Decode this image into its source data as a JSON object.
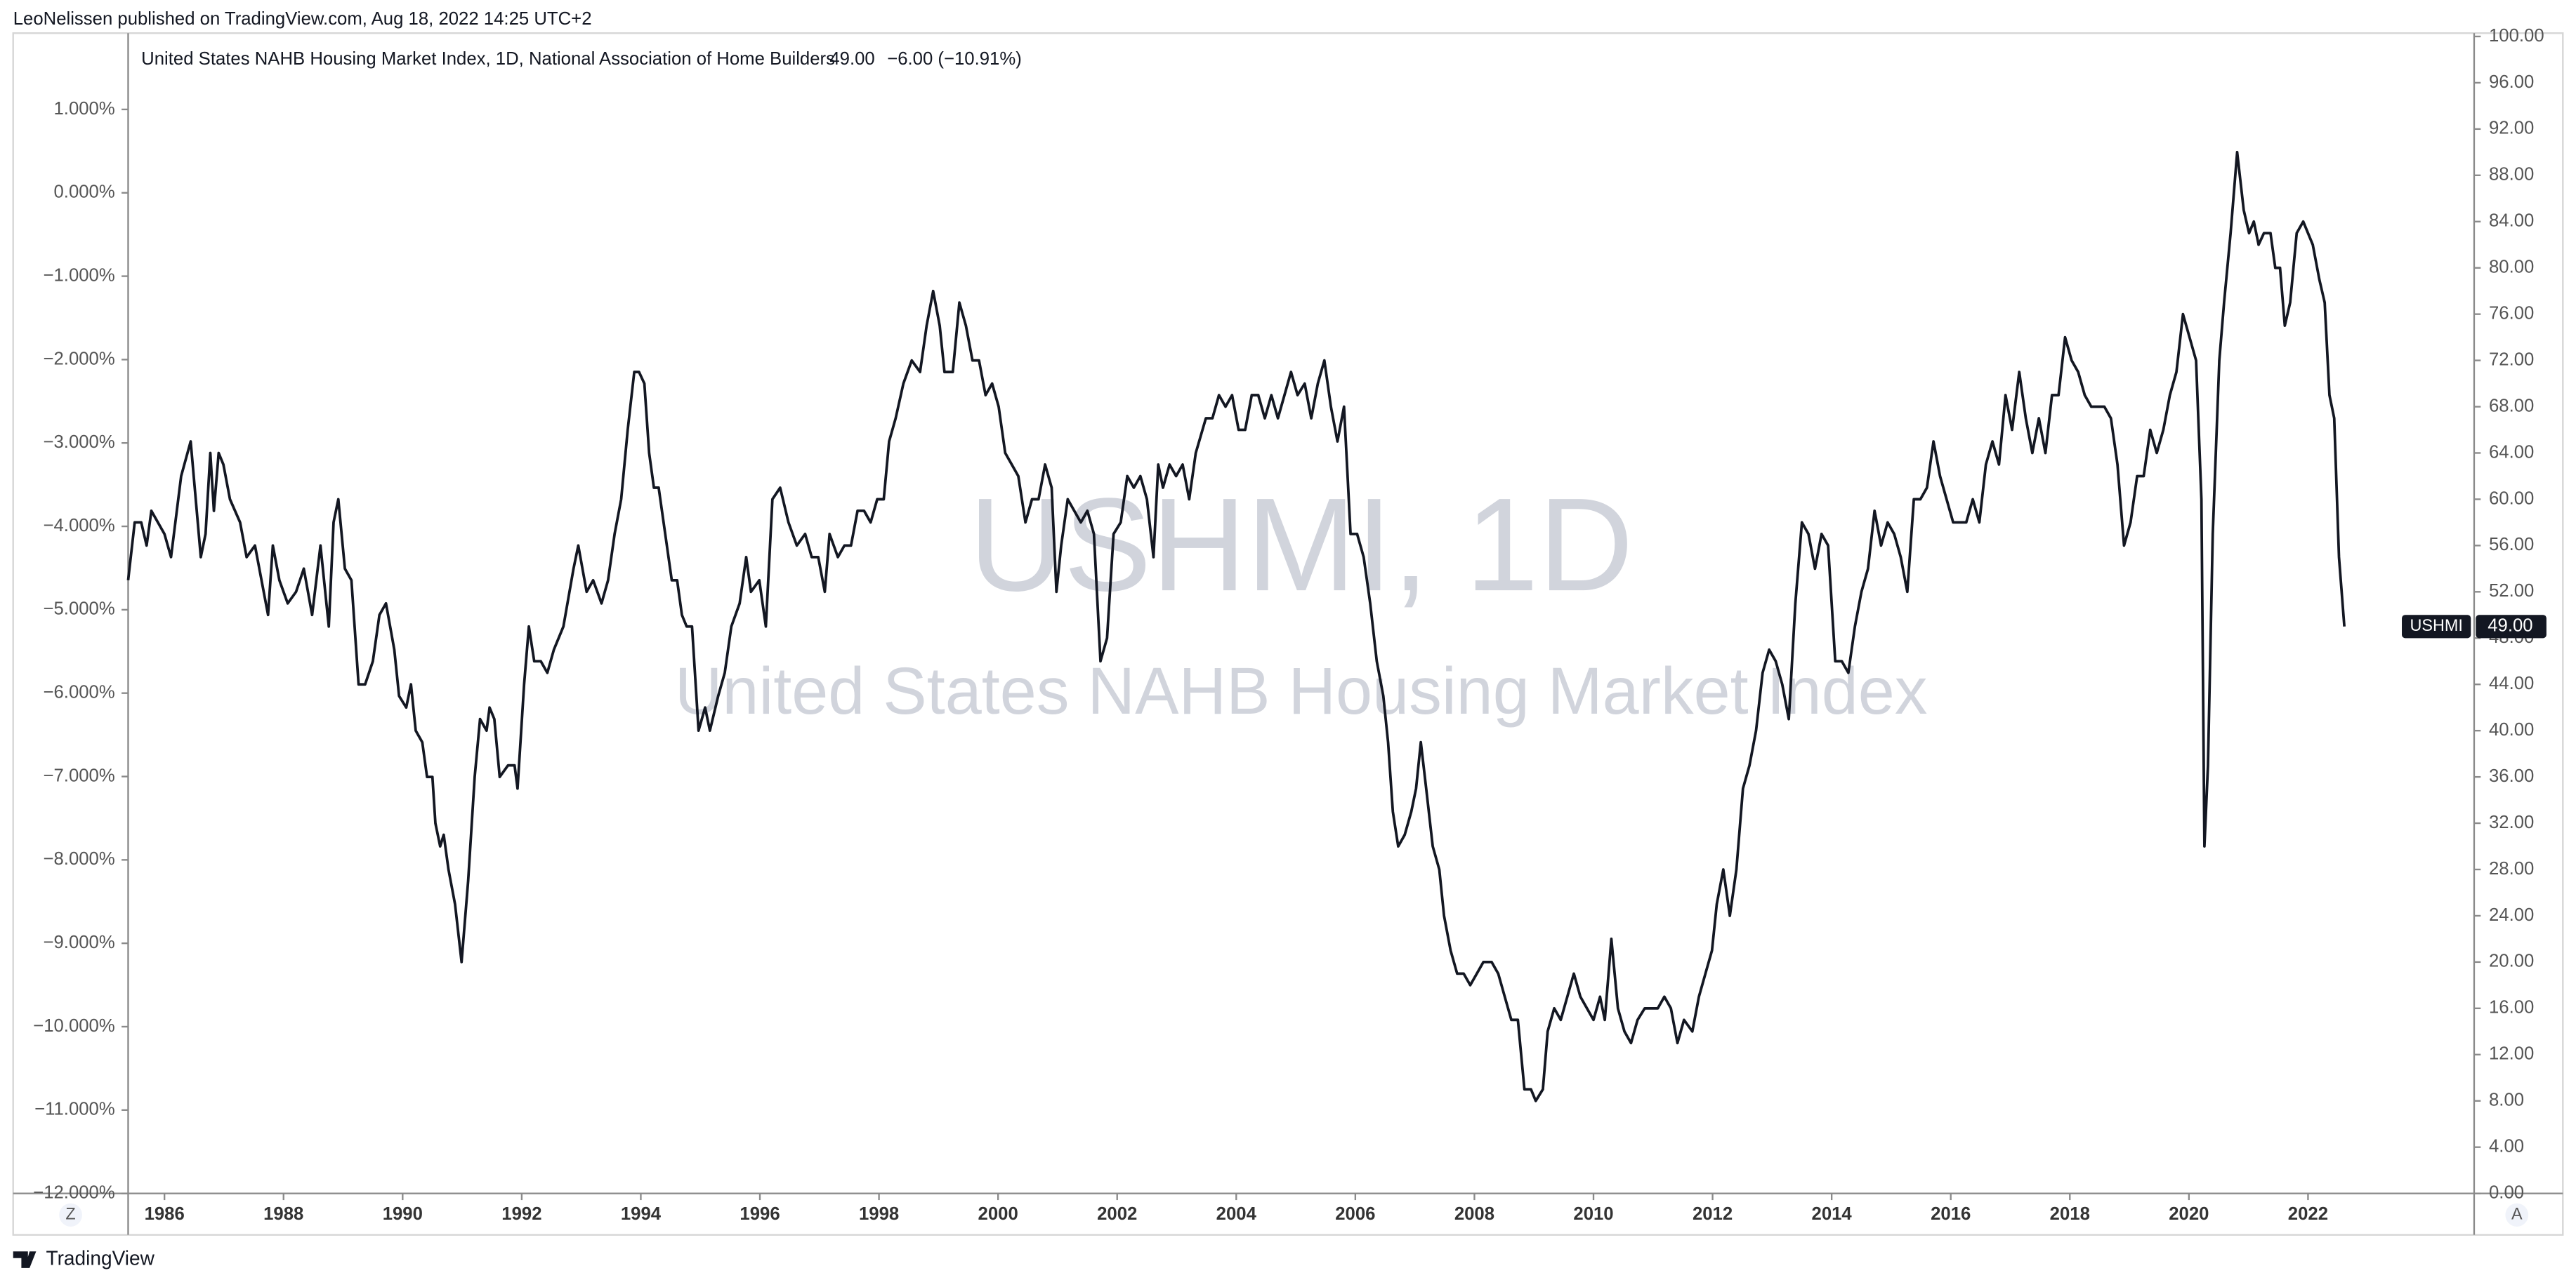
{
  "header": {
    "publisher": "LeoNelissen published on TradingView.com, Aug 18, 2022 14:25 UTC+2"
  },
  "chart_data": {
    "type": "line",
    "legend": {
      "title": "United States NAHB Housing Market Index, 1D, National Association of Home Builders",
      "value": "49.00",
      "change": "−6.00 (−10.91%)"
    },
    "watermark": {
      "symbol": "USHMI, 1D",
      "description": "United States NAHB Housing Market Index"
    },
    "price_tag": {
      "value": "49.00"
    },
    "x": [
      1985.39,
      1985.5,
      1985.61,
      1985.7,
      1985.78,
      1986,
      1986.11,
      1986.28,
      1986.44,
      1986.61,
      1986.69,
      1986.77,
      1986.83,
      1986.91,
      1986.99,
      1987.1,
      1987.27,
      1987.38,
      1987.52,
      1987.74,
      1987.82,
      1987.93,
      1988.07,
      1988.21,
      1988.34,
      1988.48,
      1988.62,
      1988.76,
      1988.84,
      1988.92,
      1989.03,
      1989.14,
      1989.26,
      1989.37,
      1989.5,
      1989.61,
      1989.72,
      1989.86,
      1989.94,
      1990.06,
      1990.14,
      1990.22,
      1990.33,
      1990.41,
      1990.5,
      1990.55,
      1990.63,
      1990.69,
      1990.77,
      1990.88,
      1990.99,
      1991.1,
      1991.21,
      1991.3,
      1991.41,
      1991.46,
      1991.54,
      1991.63,
      1991.77,
      1991.88,
      1991.93,
      1992.04,
      1992.12,
      1992.21,
      1992.32,
      1992.43,
      1992.54,
      1992.7,
      1992.87,
      1992.95,
      1993.09,
      1993.2,
      1993.34,
      1993.45,
      1993.56,
      1993.67,
      1993.78,
      1993.89,
      1993.97,
      1994.06,
      1994.14,
      1994.22,
      1994.3,
      1994.41,
      1994.52,
      1994.61,
      1994.69,
      1994.77,
      1994.86,
      1994.97,
      1995.08,
      1995.16,
      1995.3,
      1995.41,
      1995.52,
      1995.66,
      1995.77,
      1995.85,
      1995.99,
      1996.1,
      1996.21,
      1996.34,
      1996.48,
      1996.62,
      1996.76,
      1996.87,
      1996.98,
      1997.09,
      1997.17,
      1997.31,
      1997.42,
      1997.53,
      1997.64,
      1997.75,
      1997.86,
      1997.97,
      1998.08,
      1998.17,
      1998.28,
      1998.41,
      1998.55,
      1998.69,
      1998.8,
      1998.91,
      1999.02,
      1999.1,
      1999.24,
      1999.35,
      1999.46,
      1999.57,
      1999.68,
      1999.79,
      1999.9,
      2000.01,
      2000.12,
      2000.23,
      2000.34,
      2000.46,
      2000.57,
      2000.68,
      2000.79,
      2000.9,
      2000.98,
      2001.06,
      2001.17,
      2001.28,
      2001.39,
      2001.5,
      2001.61,
      2001.72,
      2001.83,
      2001.94,
      2002.06,
      2002.17,
      2002.28,
      2002.39,
      2002.5,
      2002.61,
      2002.69,
      2002.77,
      2002.88,
      2002.99,
      2003.1,
      2003.21,
      2003.32,
      2003.49,
      2003.6,
      2003.71,
      2003.82,
      2003.93,
      2004.04,
      2004.15,
      2004.26,
      2004.37,
      2004.48,
      2004.59,
      2004.7,
      2004.81,
      2004.92,
      2005.03,
      2005.15,
      2005.26,
      2005.37,
      2005.48,
      2005.59,
      2005.7,
      2005.81,
      2005.92,
      2006.03,
      2006.14,
      2006.25,
      2006.36,
      2006.47,
      2006.55,
      2006.63,
      2006.72,
      2006.83,
      2006.94,
      2007.02,
      2007.1,
      2007.19,
      2007.3,
      2007.41,
      2007.49,
      2007.6,
      2007.71,
      2007.82,
      2007.93,
      2008.04,
      2008.15,
      2008.29,
      2008.4,
      2008.51,
      2008.62,
      2008.73,
      2008.84,
      2008.95,
      2009.03,
      2009.15,
      2009.23,
      2009.34,
      2009.45,
      2009.56,
      2009.67,
      2009.78,
      2009.89,
      2010,
      2010.11,
      2010.19,
      2010.3,
      2010.41,
      2010.52,
      2010.63,
      2010.74,
      2010.86,
      2010.97,
      2011.08,
      2011.19,
      2011.3,
      2011.41,
      2011.52,
      2011.66,
      2011.77,
      2011.88,
      2011.99,
      2012.07,
      2012.18,
      2012.29,
      2012.4,
      2012.51,
      2012.62,
      2012.73,
      2012.84,
      2012.95,
      2013.06,
      2013.17,
      2013.28,
      2013.39,
      2013.5,
      2013.61,
      2013.72,
      2013.83,
      2013.94,
      2014.06,
      2014.17,
      2014.28,
      2014.39,
      2014.5,
      2014.61,
      2014.72,
      2014.83,
      2014.94,
      2015.05,
      2015.16,
      2015.27,
      2015.38,
      2015.49,
      2015.6,
      2015.71,
      2015.82,
      2015.93,
      2016.04,
      2016.15,
      2016.26,
      2016.37,
      2016.48,
      2016.59,
      2016.7,
      2016.81,
      2016.92,
      2017.03,
      2017.15,
      2017.26,
      2017.37,
      2017.48,
      2017.59,
      2017.7,
      2017.81,
      2017.92,
      2018.03,
      2018.14,
      2018.25,
      2018.36,
      2018.47,
      2018.58,
      2018.69,
      2018.8,
      2018.91,
      2019.02,
      2019.13,
      2019.24,
      2019.35,
      2019.46,
      2019.57,
      2019.68,
      2019.79,
      2019.9,
      2020.01,
      2020.12,
      2020.21,
      2020.26,
      2020.32,
      2020.4,
      2020.51,
      2020.59,
      2020.7,
      2020.81,
      2020.92,
      2021.01,
      2021.09,
      2021.17,
      2021.26,
      2021.37,
      2021.45,
      2021.53,
      2021.61,
      2021.7,
      2021.81,
      2021.92,
      2022,
      2022.08,
      2022.19,
      2022.28,
      2022.36,
      2022.44,
      2022.52,
      2022.61
    ],
    "xlim": [
      1985.39,
      2024.79
    ],
    "xticks": [
      1986,
      1988,
      1990,
      1992,
      1994,
      1996,
      1998,
      2000,
      2002,
      2004,
      2006,
      2008,
      2010,
      2012,
      2014,
      2016,
      2018,
      2020,
      2022
    ],
    "series": [
      {
        "name": "USHMI",
        "color": "#131722",
        "values": [
          53,
          58,
          58,
          56,
          59,
          57,
          55,
          62,
          65,
          55,
          57,
          64,
          59,
          64,
          63,
          60,
          58,
          55,
          56,
          50,
          56,
          53,
          51,
          52,
          54,
          50,
          56,
          49,
          58,
          60,
          54,
          53,
          44,
          44,
          46,
          50,
          51,
          47,
          43,
          42,
          44,
          40,
          39,
          36,
          36,
          32,
          30,
          31,
          28,
          25,
          20,
          27,
          36,
          41,
          40,
          42,
          41,
          36,
          37,
          37,
          35,
          44,
          49,
          46,
          46,
          45,
          47,
          49,
          54,
          56,
          52,
          53,
          51,
          53,
          57,
          60,
          66,
          71,
          71,
          70,
          64,
          61,
          61,
          57,
          53,
          53,
          50,
          49,
          49,
          40,
          42,
          40,
          43,
          45,
          49,
          51,
          55,
          52,
          53,
          49,
          60,
          61,
          58,
          56,
          57,
          55,
          55,
          52,
          57,
          55,
          56,
          56,
          59,
          59,
          58,
          60,
          60,
          65,
          67,
          70,
          72,
          71,
          75,
          78,
          75,
          71,
          71,
          77,
          75,
          72,
          72,
          69,
          70,
          68,
          64,
          63,
          62,
          58,
          60,
          60,
          63,
          61,
          52,
          56,
          60,
          59,
          58,
          59,
          57,
          46,
          48,
          57,
          58,
          62,
          61,
          62,
          60,
          55,
          63,
          61,
          63,
          62,
          63,
          60,
          64,
          67,
          67,
          69,
          68,
          69,
          66,
          66,
          69,
          69,
          67,
          69,
          67,
          69,
          71,
          69,
          70,
          67,
          70,
          72,
          68,
          65,
          68,
          57,
          57,
          55,
          51,
          46,
          43,
          39,
          33,
          30,
          31,
          33,
          35,
          39,
          35,
          30,
          28,
          24,
          21,
          19,
          19,
          18,
          19,
          20,
          20,
          19,
          17,
          15,
          15,
          9,
          9,
          8,
          9,
          14,
          16,
          15,
          17,
          19,
          17,
          16,
          15,
          17,
          15,
          22,
          16,
          14,
          13,
          15,
          16,
          16,
          16,
          17,
          16,
          13,
          15,
          14,
          17,
          19,
          21,
          25,
          28,
          24,
          28,
          35,
          37,
          40,
          45,
          47,
          46,
          44,
          41,
          51,
          58,
          57,
          54,
          57,
          56,
          46,
          46,
          45,
          49,
          52,
          54,
          59,
          56,
          58,
          57,
          55,
          52,
          60,
          60,
          61,
          65,
          62,
          60,
          58,
          58,
          58,
          60,
          58,
          63,
          65,
          63,
          69,
          66,
          71,
          67,
          64,
          67,
          64,
          69,
          69,
          74,
          72,
          71,
          69,
          68,
          68,
          68,
          67,
          63,
          56,
          58,
          62,
          62,
          66,
          64,
          66,
          69,
          71,
          76,
          74,
          72,
          60,
          30,
          37,
          57,
          72,
          77,
          83,
          90,
          85,
          83,
          84,
          82,
          83,
          83,
          80,
          80,
          75,
          77,
          83,
          84,
          83,
          82,
          79,
          77,
          69,
          67,
          55,
          49
        ]
      }
    ],
    "ylim": [
      0,
      100
    ],
    "yticks": [
      {
        "value": 0,
        "label": "0.00"
      },
      {
        "value": 4,
        "label": "4.00"
      },
      {
        "value": 8,
        "label": "8.00"
      },
      {
        "value": 12,
        "label": "12.00"
      },
      {
        "value": 16,
        "label": "16.00"
      },
      {
        "value": 20,
        "label": "20.00"
      },
      {
        "value": 24,
        "label": "24.00"
      },
      {
        "value": 28,
        "label": "28.00"
      },
      {
        "value": 32,
        "label": "32.00"
      },
      {
        "value": 36,
        "label": "36.00"
      },
      {
        "value": 40,
        "label": "40.00"
      },
      {
        "value": 44,
        "label": "44.00"
      },
      {
        "value": 48,
        "label": "48.00"
      },
      {
        "value": 52,
        "label": "52.00"
      },
      {
        "value": 56,
        "label": "56.00"
      },
      {
        "value": 60,
        "label": "60.00"
      },
      {
        "value": 64,
        "label": "64.00"
      },
      {
        "value": 68,
        "label": "68.00"
      },
      {
        "value": 72,
        "label": "72.00"
      },
      {
        "value": 76,
        "label": "76.00"
      },
      {
        "value": 80,
        "label": "80.00"
      },
      {
        "value": 84,
        "label": "84.00"
      },
      {
        "value": 88,
        "label": "88.00"
      },
      {
        "value": 92,
        "label": "92.00"
      },
      {
        "value": 96,
        "label": "96.00"
      },
      {
        "value": 100,
        "label": "100.00"
      }
    ],
    "y2lim": [
      -12,
      1.875
    ],
    "y2ticks": [
      {
        "value": 1,
        "label": "1.000%"
      },
      {
        "value": 0,
        "label": "0.000%"
      },
      {
        "value": -1,
        "label": "−1.000%"
      },
      {
        "value": -2,
        "label": "−2.000%"
      },
      {
        "value": -3,
        "label": "−3.000%"
      },
      {
        "value": -4,
        "label": "−4.000%"
      },
      {
        "value": -5,
        "label": "−5.000%"
      },
      {
        "value": -6,
        "label": "−6.000%"
      },
      {
        "value": -7,
        "label": "−7.000%"
      },
      {
        "value": -8,
        "label": "−8.000%"
      },
      {
        "value": -9,
        "label": "−9.000%"
      },
      {
        "value": -10,
        "label": "−10.000%"
      },
      {
        "value": -11,
        "label": "−11.000%"
      },
      {
        "value": -12,
        "label": "−12.000%"
      }
    ]
  },
  "controls": {
    "left": "Z",
    "right": "A"
  },
  "footer": {
    "brand": "TradingView"
  }
}
